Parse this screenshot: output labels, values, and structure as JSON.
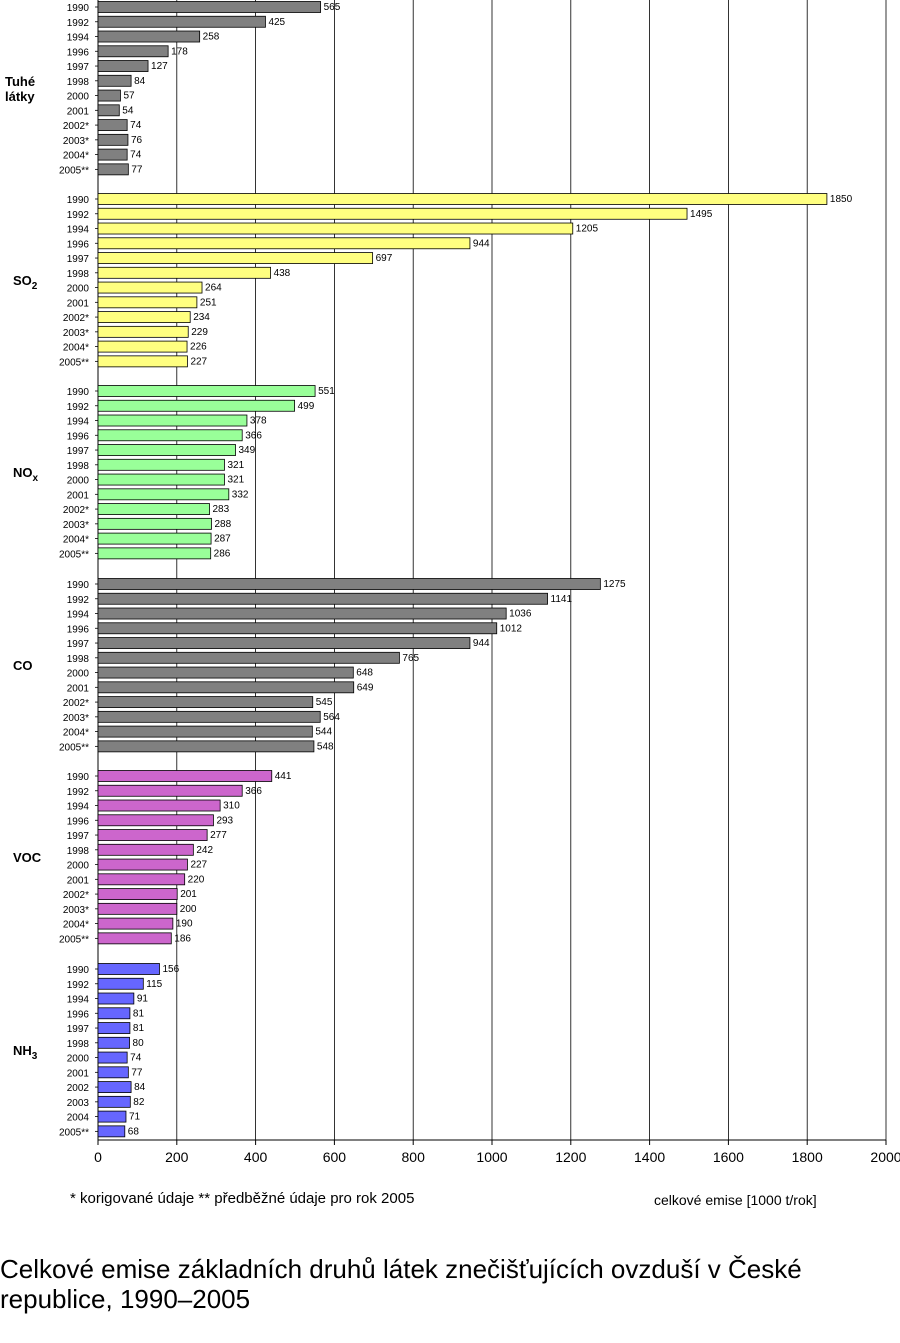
{
  "chart_data": {
    "type": "bar",
    "orientation": "horizontal",
    "xlabel": "celkové emise [1000 t/rok]",
    "xlim": [
      0,
      2000
    ],
    "xticks": [
      0,
      200,
      400,
      600,
      800,
      1000,
      1200,
      1400,
      1600,
      1800,
      2000
    ],
    "grid": true,
    "groups": [
      {
        "name": "Tuhé látky",
        "label_lines": [
          "Tuhé",
          "látky"
        ],
        "color": "#808080",
        "years": [
          "1990",
          "1992",
          "1994",
          "1996",
          "1997",
          "1998",
          "2000",
          "2001",
          "2002*",
          "2003*",
          "2004*",
          "2005**"
        ],
        "values": [
          565,
          425,
          258,
          178,
          127,
          84,
          57,
          54,
          74,
          76,
          74,
          77
        ]
      },
      {
        "name": "SO2",
        "label_main": "SO",
        "label_sub": "2",
        "color": "#ffff80",
        "years": [
          "1990",
          "1992",
          "1994",
          "1996",
          "1997",
          "1998",
          "2000",
          "2001",
          "2002*",
          "2003*",
          "2004*",
          "2005**"
        ],
        "values": [
          1850,
          1495,
          1205,
          944,
          697,
          438,
          264,
          251,
          234,
          229,
          226,
          227
        ]
      },
      {
        "name": "NOx",
        "label_main": "NO",
        "label_sub": "x",
        "color": "#99ff99",
        "years": [
          "1990",
          "1992",
          "1994",
          "1996",
          "1997",
          "1998",
          "2000",
          "2001",
          "2002*",
          "2003*",
          "2004*",
          "2005**"
        ],
        "values": [
          551,
          499,
          378,
          366,
          349,
          321,
          321,
          332,
          283,
          288,
          287,
          286
        ]
      },
      {
        "name": "CO",
        "color": "#808080",
        "years": [
          "1990",
          "1992",
          "1994",
          "1996",
          "1997",
          "1998",
          "2000",
          "2001",
          "2002*",
          "2003*",
          "2004*",
          "2005**"
        ],
        "values": [
          1275,
          1141,
          1036,
          1012,
          944,
          765,
          648,
          649,
          545,
          564,
          544,
          548
        ]
      },
      {
        "name": "VOC",
        "color": "#cc66cc",
        "years": [
          "1990",
          "1992",
          "1994",
          "1996",
          "1997",
          "1998",
          "2000",
          "2001",
          "2002*",
          "2003*",
          "2004*",
          "2005**"
        ],
        "values": [
          441,
          366,
          310,
          293,
          277,
          242,
          227,
          220,
          201,
          200,
          190,
          186
        ]
      },
      {
        "name": "NH3",
        "label_main": "NH",
        "label_sub": "3",
        "color": "#6666ff",
        "years": [
          "1990",
          "1992",
          "1994",
          "1996",
          "1997",
          "1998",
          "2000",
          "2001",
          "2002",
          "2003",
          "2004",
          "2005**"
        ],
        "values": [
          156,
          115,
          91,
          81,
          81,
          80,
          74,
          77,
          84,
          82,
          71,
          68
        ]
      }
    ]
  },
  "footnote": "* korigované údaje    ** předběžné údaje pro rok 2005",
  "caption": "Celkové emise základních druhů látek znečišťujících ovzduší v České republice, 1990–2005"
}
